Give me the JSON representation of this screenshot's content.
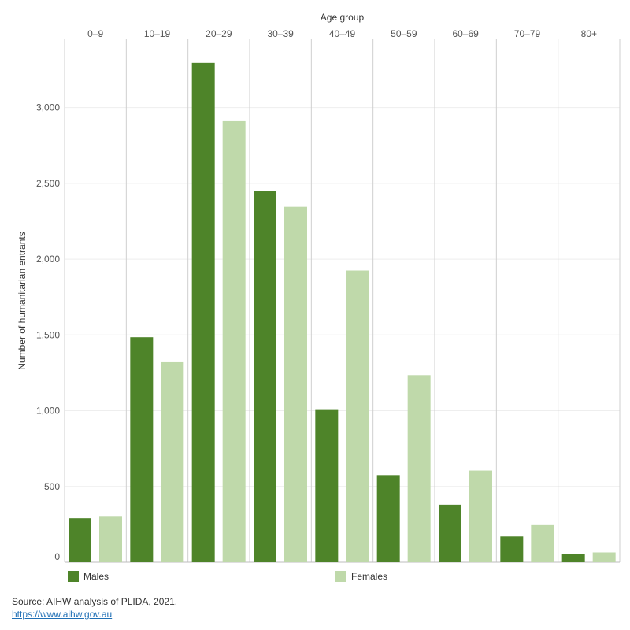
{
  "chart_data": {
    "type": "bar",
    "xlabel": "Age group",
    "ylabel": "Number of humanitarian entrants",
    "categories": [
      "0–9",
      "10–19",
      "20–29",
      "30–39",
      "40–49",
      "50–59",
      "60–69",
      "70–79",
      "80+"
    ],
    "series": [
      {
        "name": "Males",
        "color": "#4e8429",
        "values": [
          290,
          1485,
          3295,
          2450,
          1010,
          575,
          380,
          170,
          55
        ]
      },
      {
        "name": "Females",
        "color": "#bfd9aa",
        "values": [
          305,
          1320,
          2910,
          2345,
          1925,
          1235,
          605,
          245,
          65
        ]
      }
    ],
    "ylim": [
      0,
      3450
    ],
    "yticks": [
      0,
      500,
      1000,
      1500,
      2000,
      2500,
      3000
    ],
    "ytick_labels": [
      "0",
      "500",
      "1,000",
      "1,500",
      "2,000",
      "2,500",
      "3,000"
    ],
    "grid": true,
    "legend_position": "bottom"
  },
  "legend": {
    "males_label": "Males",
    "females_label": "Females"
  },
  "source": {
    "text": "Source: AIHW analysis of PLIDA, 2021.",
    "link": "https://www.aihw.gov.au"
  }
}
